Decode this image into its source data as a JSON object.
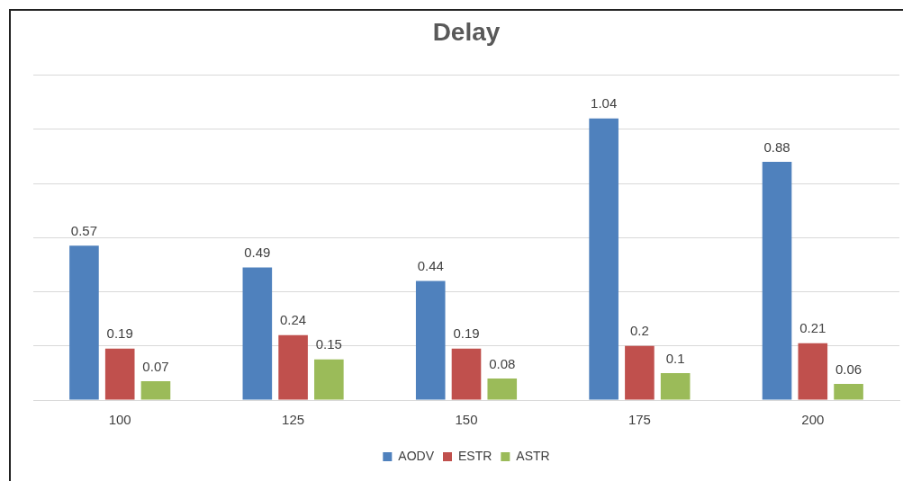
{
  "chart_data": {
    "type": "bar",
    "title": "Delay",
    "categories": [
      "100",
      "125",
      "150",
      "175",
      "200"
    ],
    "series": [
      {
        "name": "AODV",
        "color": "#4f81bd",
        "values": [
          0.57,
          0.49,
          0.44,
          1.04,
          0.88
        ]
      },
      {
        "name": "ESTR",
        "color": "#c0504d",
        "values": [
          0.19,
          0.24,
          0.19,
          0.2,
          0.21
        ]
      },
      {
        "name": "ASTR",
        "color": "#9bbb59",
        "values": [
          0.07,
          0.15,
          0.08,
          0.1,
          0.06
        ]
      }
    ],
    "ylim": [
      0,
      1.2
    ],
    "yticks": [
      {
        "value": 0,
        "label": null
      },
      {
        "value": 0.2,
        "label": null
      },
      {
        "value": 0.4,
        "label": null
      },
      {
        "value": 0.6,
        "label": null
      },
      {
        "value": 0.8,
        "label": null
      },
      {
        "value": 1,
        "label": null
      },
      {
        "value": 1.2,
        "label": null
      }
    ],
    "tick_labels": "x",
    "grid": "y",
    "legend": "bottom",
    "data_labels": true
  }
}
